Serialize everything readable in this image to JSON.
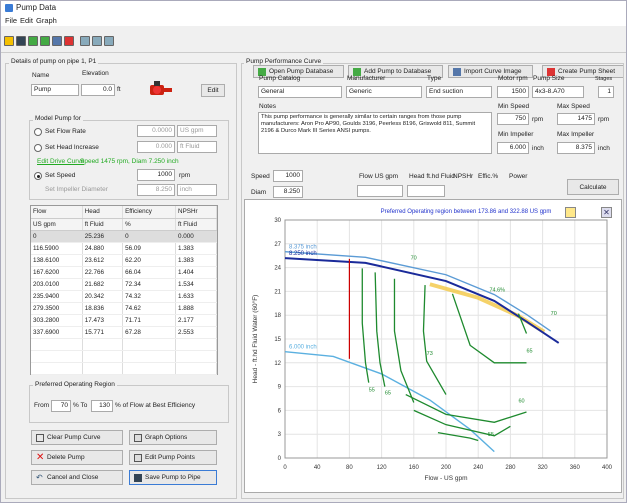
{
  "window": {
    "title": "Pump Data"
  },
  "menu": [
    "File",
    "Edit",
    "Graph"
  ],
  "tool_buttons": {
    "open_db": "Open Pump Database",
    "add_db": "Add Pump to Database",
    "import_image": "Import Curve Image",
    "create_sheet": "Create Pump Sheet"
  },
  "left_panel": {
    "title": "Details of pump on pipe 1, P1",
    "name_label": "Name",
    "name_value": "Pump",
    "elev_label": "Elevation",
    "elev_value": "0.0",
    "elev_unit": "ft",
    "edit_btn": "Edit",
    "model_title": "Model Pump for",
    "opt_flow": "Set Flow Rate",
    "opt_flow_val": "0.0000",
    "opt_flow_unit": "US gpm",
    "opt_head": "Set Head Increase",
    "opt_head_val": "0.000",
    "opt_head_unit": "ft Fluid",
    "edit_drive": "Edit Drive Curve",
    "speed_info": "Speed 1475 rpm, Diam 7.250 inch",
    "opt_speed": "Set Speed",
    "opt_speed_val": "1000",
    "opt_speed_unit": "rpm",
    "impeller_label": "Set Impeller Diameter",
    "impeller_val": "8.250",
    "impeller_unit": "inch"
  },
  "table": {
    "headers": [
      "Flow",
      "Head",
      "Efficiency",
      "NPSHr"
    ],
    "units": [
      "US gpm",
      "ft Fluid",
      "%",
      "ft Fluid"
    ],
    "rows": [
      [
        "0",
        "25.236",
        "0",
        "0.000"
      ],
      [
        "116.5900",
        "24.880",
        "56.09",
        "1.383"
      ],
      [
        "138.6100",
        "23.612",
        "62.20",
        "1.383"
      ],
      [
        "167.6200",
        "22.766",
        "66.04",
        "1.404"
      ],
      [
        "203.0100",
        "21.682",
        "72.34",
        "1.534"
      ],
      [
        "235.9400",
        "20.342",
        "74.32",
        "1.633"
      ],
      [
        "279.3500",
        "18.836",
        "74.62",
        "1.888"
      ],
      [
        "303.2800",
        "17.473",
        "71.71",
        "2.177"
      ],
      [
        "337.6900",
        "15.771",
        "67.28",
        "2.553"
      ]
    ]
  },
  "por": {
    "title": "Preferred Operating Region",
    "from_label": "From",
    "from_val": "70",
    "pct_to": "% To",
    "to_val": "130",
    "suffix": "% of Flow at Best Efficiency"
  },
  "bottom": {
    "clear": "Clear Pump Curve",
    "graph_opt": "Graph Options",
    "delete": "Delete Pump",
    "edit_points": "Edit Pump Points",
    "cancel": "Cancel and Close",
    "save": "Save Pump to Pipe"
  },
  "right_panel": {
    "title": "Pump Performance Curve",
    "catalog_label": "Pump Catalog",
    "catalog_val": "General",
    "manu_label": "Manufacturer",
    "manu_val": "Generic",
    "type_label": "Type",
    "type_val": "End suction",
    "motor_label": "Motor rpm",
    "motor_val": "1500",
    "size_label": "Pump Size",
    "size_val": "4x3-8.A70",
    "stages_label": "Stages",
    "stages_val": "1",
    "notes_label": "Notes",
    "notes_val": "This pump performance is generally similar to certain ranges from those pump manufacturers: Aron Pro AP90, Goulds 3196, Peerless 8196, Griswold 811, Summit 2196 & Durco Mark III Series ANSI pumps.",
    "minspeed_label": "Min Speed",
    "minspeed_val": "750",
    "maxspeed_label": "Max Speed",
    "maxspeed_val": "1475",
    "minimp_label": "Min Impeller",
    "minimp_val": "6.000",
    "maximp_label": "Max Impeller",
    "maximp_val": "8.375",
    "speed_label": "Speed",
    "speed_val": "1000",
    "diam_label": "Diam",
    "diam_val": "8.250",
    "flow_hdr": "Flow US gpm",
    "head_hdr": "Head ft.hd Fluid",
    "npsh_hdr": "NPSHr",
    "eff_hdr": "Effic.%",
    "power_hdr": "Power",
    "calc": "Calculate"
  },
  "chart_data": {
    "type": "line",
    "title": "Preferred Operating region between 173.86 and 322.88 US gpm",
    "xlabel": "Flow - US gpm",
    "ylabel": "Head - ft.hd Fluid Water (60°F)",
    "xlim": [
      0,
      400
    ],
    "ylim": [
      0,
      30
    ],
    "xticks": [
      0,
      40,
      80,
      120,
      160,
      200,
      240,
      280,
      320,
      360,
      400
    ],
    "yticks": [
      0,
      3,
      6,
      9,
      12,
      15,
      18,
      21,
      24,
      27,
      30
    ],
    "series": [
      {
        "name": "8.375 inch",
        "x": [
          0,
          100,
          200,
          260,
          300,
          330
        ],
        "y": [
          26,
          25.3,
          23.1,
          20.6,
          18.1,
          16
        ]
      },
      {
        "name": "8.250 inch",
        "x": [
          0,
          100,
          200,
          260,
          300,
          340
        ],
        "y": [
          25.2,
          24.6,
          22.3,
          19.8,
          17.2,
          14.5
        ]
      },
      {
        "name": "6.000 inch",
        "x": [
          0,
          60,
          120,
          180,
          230,
          260
        ],
        "y": [
          13.4,
          12.8,
          10.6,
          7.3,
          3.6,
          0.8
        ]
      }
    ],
    "efficiency_labels": [
      "55",
      "65",
      "70",
      "73",
      "74.6%",
      "70",
      "65",
      "60",
      "55"
    ]
  }
}
